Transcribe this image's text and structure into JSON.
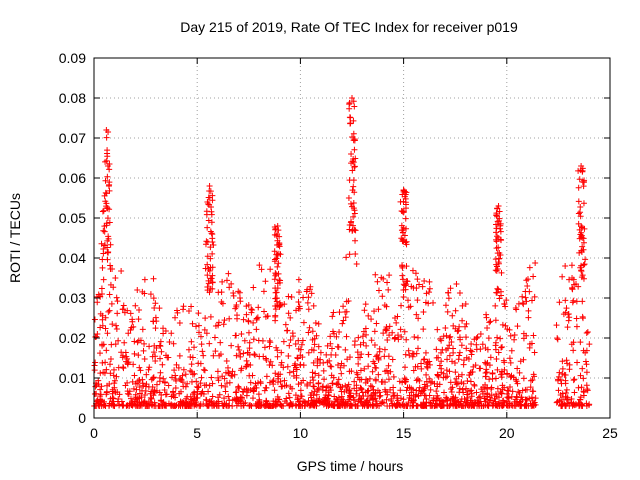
{
  "chart_data": {
    "type": "scatter",
    "title": "Day 215 of 2019, Rate Of TEC Index for receiver p019",
    "xlabel": "GPS time / hours",
    "ylabel": "ROTI / TECUs",
    "xlim": [
      0,
      25
    ],
    "ylim": [
      0,
      0.09
    ],
    "x_ticks": [
      "0",
      "5",
      "10",
      "15",
      "20",
      "25"
    ],
    "y_ticks": [
      "0",
      "0.01",
      "0.02",
      "0.03",
      "0.04",
      "0.05",
      "0.06",
      "0.07",
      "0.08",
      "0.09"
    ],
    "grid": true,
    "marker": "plus",
    "color": "#ff0000",
    "data_gaps_hours": [
      [
        21.4,
        22.4
      ]
    ],
    "peaks": [
      {
        "x": 0.6,
        "y": 0.072
      },
      {
        "x": 5.6,
        "y": 0.058
      },
      {
        "x": 8.9,
        "y": 0.048
      },
      {
        "x": 12.5,
        "y": 0.08
      },
      {
        "x": 15.0,
        "y": 0.057
      },
      {
        "x": 19.6,
        "y": 0.053
      },
      {
        "x": 23.6,
        "y": 0.063
      }
    ]
  }
}
